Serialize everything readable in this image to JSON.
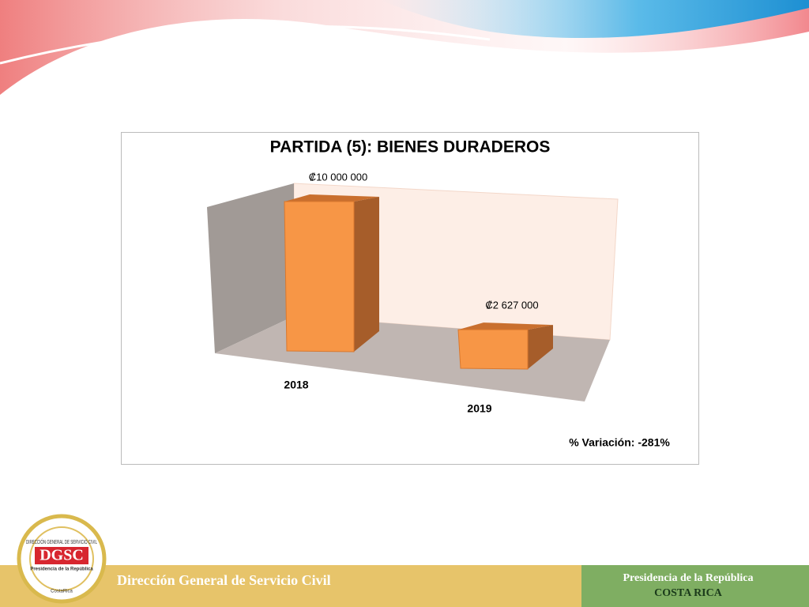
{
  "chart_data": {
    "type": "bar",
    "title": "PARTIDA (5): BIENES DURADEROS",
    "categories": [
      "2018",
      "2019"
    ],
    "values": [
      10000000,
      2627000
    ],
    "value_labels": [
      "₡10 000 000",
      "₡2 627 000"
    ],
    "color": "#f79646",
    "annotation": "% Variación: -281%"
  },
  "footer": {
    "left": "Dirección General de Servicio Civil",
    "right_top": "Presidencia de la República",
    "right_bottom": "COSTA RICA"
  },
  "logo": {
    "acronym": "DGSC",
    "ring": "DIRECCIÓN GENERAL DE SERVICIO CIVIL",
    "subtitle": "Presidencia de la República",
    "country": "CostaRica"
  }
}
